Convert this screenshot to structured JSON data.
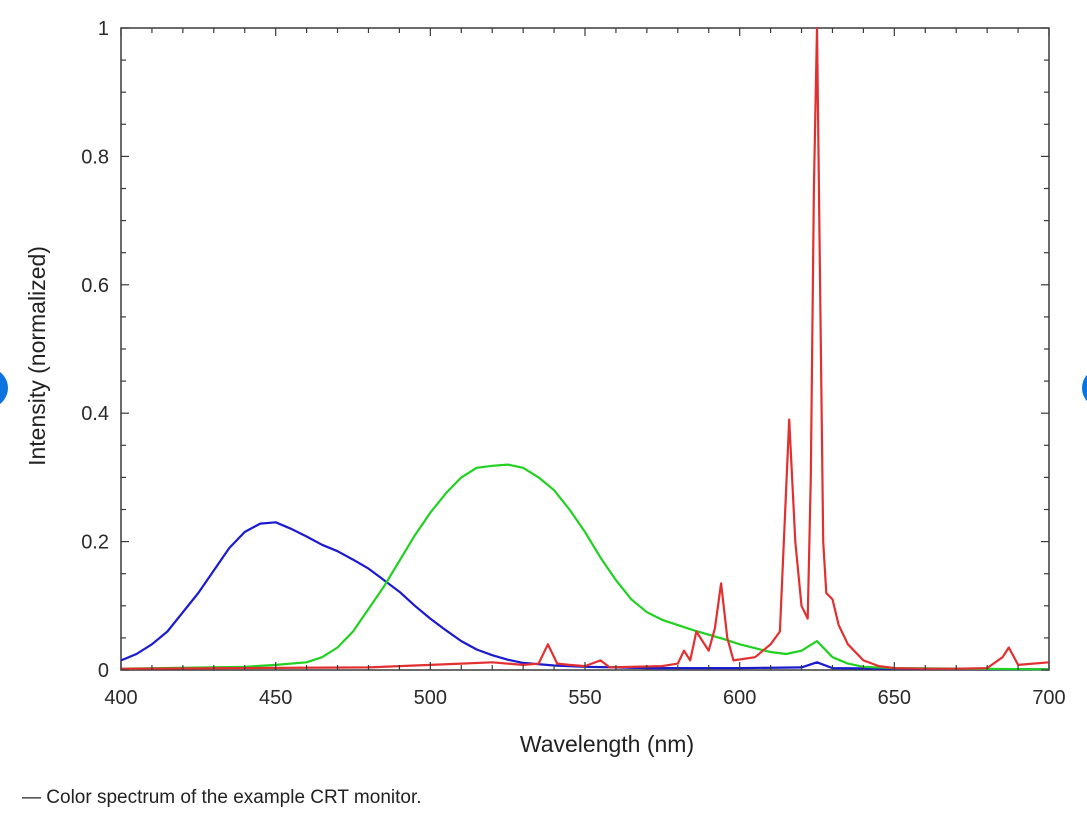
{
  "caption": "— Color spectrum of the example CRT monitor.",
  "chart_data": {
    "type": "line",
    "xlabel": "Wavelength (nm)",
    "ylabel": "Intensity (normalized)",
    "xlim": [
      400,
      700
    ],
    "ylim": [
      0,
      1
    ],
    "xticks": [
      400,
      450,
      500,
      550,
      600,
      650,
      700
    ],
    "xtick_labels": [
      "400",
      "450",
      "500",
      "550",
      "600",
      "650",
      "700"
    ],
    "yticks": [
      0,
      0.2,
      0.4,
      0.6,
      0.8,
      1
    ],
    "ytick_labels": [
      "0",
      "0.2",
      "0.4",
      "0.6",
      "0.8",
      "1"
    ],
    "grid": false,
    "series": [
      {
        "color": "#1a1ad0",
        "x": [
          400,
          405,
          410,
          415,
          420,
          425,
          430,
          435,
          440,
          445,
          450,
          455,
          460,
          465,
          470,
          475,
          480,
          485,
          490,
          495,
          500,
          505,
          510,
          515,
          520,
          525,
          530,
          540,
          550,
          560,
          570,
          580,
          600,
          620,
          625,
          630,
          650,
          700
        ],
        "y": [
          0.015,
          0.025,
          0.04,
          0.06,
          0.09,
          0.12,
          0.155,
          0.19,
          0.215,
          0.228,
          0.23,
          0.22,
          0.208,
          0.195,
          0.185,
          0.172,
          0.158,
          0.14,
          0.122,
          0.1,
          0.08,
          0.062,
          0.045,
          0.032,
          0.023,
          0.016,
          0.011,
          0.007,
          0.005,
          0.004,
          0.003,
          0.003,
          0.003,
          0.004,
          0.012,
          0.003,
          0.002,
          0.001
        ]
      },
      {
        "color": "#22d022",
        "x": [
          400,
          440,
          450,
          460,
          465,
          470,
          475,
          480,
          485,
          490,
          495,
          500,
          505,
          510,
          515,
          520,
          525,
          530,
          535,
          540,
          545,
          550,
          555,
          560,
          565,
          570,
          575,
          580,
          585,
          590,
          595,
          600,
          605,
          610,
          615,
          620,
          625,
          630,
          635,
          640,
          650,
          700
        ],
        "y": [
          0.002,
          0.005,
          0.008,
          0.012,
          0.02,
          0.035,
          0.06,
          0.095,
          0.13,
          0.17,
          0.21,
          0.245,
          0.275,
          0.3,
          0.315,
          0.318,
          0.32,
          0.315,
          0.3,
          0.28,
          0.25,
          0.215,
          0.175,
          0.14,
          0.11,
          0.09,
          0.078,
          0.07,
          0.062,
          0.055,
          0.048,
          0.04,
          0.034,
          0.028,
          0.025,
          0.03,
          0.045,
          0.02,
          0.01,
          0.005,
          0.003,
          0.001
        ]
      },
      {
        "color": "#e23030",
        "x": [
          400,
          480,
          510,
          520,
          530,
          535,
          538,
          541,
          545,
          550,
          555,
          558,
          575,
          580,
          582,
          584,
          586,
          588,
          590,
          592,
          594,
          596,
          598,
          605,
          610,
          613,
          616,
          618,
          620,
          622,
          623,
          624,
          625,
          626,
          627,
          628,
          630,
          632,
          635,
          640,
          645,
          650,
          660,
          670,
          680,
          685,
          687,
          690,
          700
        ],
        "y": [
          0.002,
          0.004,
          0.01,
          0.012,
          0.008,
          0.01,
          0.04,
          0.01,
          0.008,
          0.006,
          0.015,
          0.004,
          0.006,
          0.01,
          0.03,
          0.015,
          0.06,
          0.045,
          0.03,
          0.065,
          0.135,
          0.05,
          0.015,
          0.02,
          0.04,
          0.06,
          0.39,
          0.2,
          0.1,
          0.08,
          0.3,
          0.75,
          1.0,
          0.6,
          0.2,
          0.12,
          0.11,
          0.07,
          0.04,
          0.015,
          0.006,
          0.003,
          0.002,
          0.002,
          0.003,
          0.02,
          0.035,
          0.008,
          0.012
        ]
      }
    ]
  }
}
